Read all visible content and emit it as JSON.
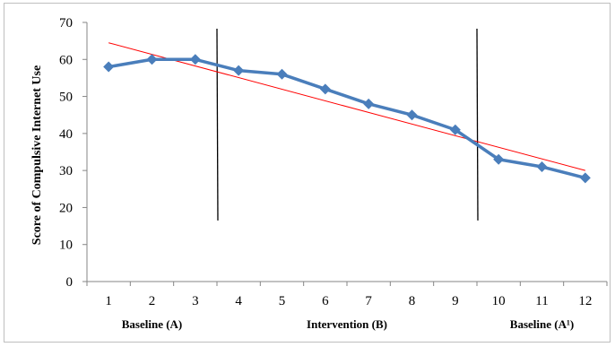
{
  "chart_data": {
    "type": "line",
    "title": "",
    "xlabel": "",
    "ylabel": "Score of Compulsive Internet Use",
    "x": [
      1,
      2,
      3,
      4,
      5,
      6,
      7,
      8,
      9,
      10,
      11,
      12
    ],
    "x_tick_labels": [
      "1",
      "2",
      "3",
      "4",
      "5",
      "6",
      "7",
      "8",
      "9",
      "10",
      "11",
      "12"
    ],
    "ylim": [
      0,
      70
    ],
    "y_ticks": [
      0,
      10,
      20,
      30,
      40,
      50,
      60,
      70
    ],
    "grid": false,
    "legend": "none",
    "series": [
      {
        "values": [
          58,
          60,
          60,
          57,
          56,
          52,
          48,
          45,
          41,
          33,
          31,
          28
        ],
        "color": "#4a7ebb",
        "marker": "diamond"
      }
    ],
    "trendline": {
      "color": "#ff0000",
      "start": {
        "x": 1,
        "y": 64.5
      },
      "end": {
        "x": 12,
        "y": 30
      }
    },
    "phase_dividers": [
      {
        "x": 3.5,
        "y_range": [
          16.5,
          70
        ]
      },
      {
        "x": 9.5,
        "y_range": [
          16.5,
          70
        ]
      }
    ],
    "phases": [
      {
        "label": "Baseline (A)",
        "x_center": 2
      },
      {
        "label": "Intervention (B)",
        "x_center": 6.5
      },
      {
        "label": "Baseline (A¹)",
        "x_center": 11
      }
    ]
  }
}
